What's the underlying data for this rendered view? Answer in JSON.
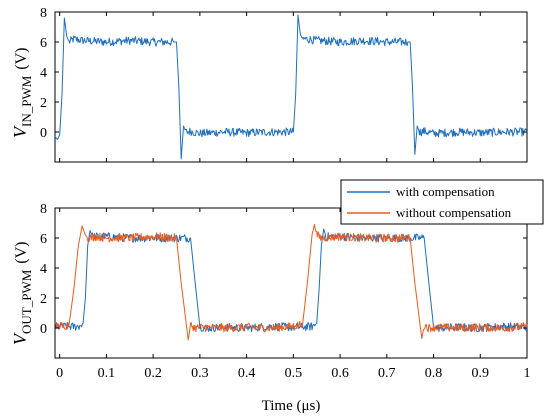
{
  "chart_data": [
    {
      "type": "line",
      "panel": "top",
      "ylabel": {
        "var": "V",
        "sub": "IN_PWM",
        "unit": "(V)"
      },
      "xlim": [
        -0.01,
        1.0
      ],
      "ylim": [
        -2,
        8
      ],
      "yticks": [
        "8",
        "6",
        "4",
        "2",
        "0"
      ],
      "yticks_values": [
        8,
        6,
        4,
        2,
        0
      ],
      "series": [
        {
          "name": "with compensation",
          "color": "#1f6fbf",
          "x": [
            -0.01,
            -0.005,
            0.0,
            0.005,
            0.01,
            0.015,
            0.02,
            0.03,
            0.05,
            0.1,
            0.15,
            0.2,
            0.245,
            0.25,
            0.255,
            0.26,
            0.265,
            0.27,
            0.28,
            0.3,
            0.35,
            0.4,
            0.45,
            0.5,
            0.505,
            0.51,
            0.515,
            0.52,
            0.53,
            0.55,
            0.6,
            0.65,
            0.7,
            0.745,
            0.75,
            0.755,
            0.76,
            0.765,
            0.77,
            0.78,
            0.8,
            0.85,
            0.9,
            0.95,
            1.0
          ],
          "y": [
            -0.3,
            -0.5,
            -0.2,
            2.5,
            7.6,
            6.4,
            6.0,
            6.2,
            6.1,
            6.0,
            6.1,
            6.0,
            6.0,
            6.0,
            3.0,
            -1.8,
            0.4,
            0.0,
            0.05,
            -0.1,
            0.0,
            -0.05,
            0.0,
            0.0,
            2.5,
            7.8,
            6.5,
            6.2,
            6.2,
            6.1,
            6.0,
            6.1,
            6.0,
            6.0,
            6.0,
            3.0,
            -1.5,
            0.4,
            0.0,
            0.05,
            -0.1,
            0.0,
            -0.05,
            0.0,
            0.0
          ]
        }
      ]
    },
    {
      "type": "line",
      "panel": "bottom",
      "ylabel": {
        "var": "V",
        "sub": "OUT_PWM",
        "unit": "(V)"
      },
      "xlabel": "Time (μs)",
      "xlim": [
        -0.01,
        1.0
      ],
      "xticks": [
        "0",
        "0.1",
        "0.2",
        "0.3",
        "0.4",
        "0.5",
        "0.6",
        "0.7",
        "0.8",
        "0.9",
        "1"
      ],
      "xticks_values": [
        0,
        0.1,
        0.2,
        0.3,
        0.4,
        0.5,
        0.6,
        0.7,
        0.8,
        0.9,
        1.0
      ],
      "ylim": [
        -2,
        8
      ],
      "yticks": [
        "8",
        "6",
        "4",
        "2",
        "0"
      ],
      "yticks_values": [
        8,
        6,
        4,
        2,
        0
      ],
      "legend": "top-right",
      "series": [
        {
          "name": "with compensation",
          "color": "#1f6fbf",
          "x": [
            -0.01,
            0.04,
            0.05,
            0.055,
            0.06,
            0.065,
            0.07,
            0.1,
            0.15,
            0.2,
            0.26,
            0.28,
            0.29,
            0.3,
            0.31,
            0.35,
            0.4,
            0.45,
            0.5,
            0.54,
            0.55,
            0.555,
            0.56,
            0.565,
            0.57,
            0.6,
            0.65,
            0.7,
            0.76,
            0.78,
            0.79,
            0.8,
            0.81,
            0.85,
            0.9,
            0.95,
            1.0
          ],
          "y": [
            0.1,
            0.1,
            0.3,
            2.0,
            5.5,
            6.5,
            6.1,
            6.1,
            6.0,
            6.0,
            6.0,
            6.0,
            3.0,
            0.1,
            0.0,
            0.05,
            0.0,
            0.1,
            0.05,
            0.1,
            0.3,
            2.5,
            5.5,
            6.6,
            6.1,
            6.1,
            6.0,
            6.0,
            6.0,
            6.0,
            3.0,
            0.1,
            0.0,
            0.05,
            0.0,
            0.1,
            0.05
          ]
        },
        {
          "name": "without compensation",
          "color": "#f05a1a",
          "x": [
            -0.01,
            0.02,
            0.03,
            0.04,
            0.048,
            0.055,
            0.06,
            0.08,
            0.1,
            0.15,
            0.2,
            0.25,
            0.26,
            0.27,
            0.275,
            0.28,
            0.29,
            0.3,
            0.35,
            0.4,
            0.45,
            0.5,
            0.52,
            0.53,
            0.54,
            0.545,
            0.55,
            0.56,
            0.6,
            0.65,
            0.7,
            0.75,
            0.76,
            0.77,
            0.775,
            0.78,
            0.79,
            0.8,
            0.85,
            0.9,
            0.95,
            1.0
          ],
          "y": [
            0.1,
            0.2,
            2.5,
            5.5,
            6.8,
            6.2,
            6.0,
            6.1,
            6.0,
            6.0,
            6.1,
            6.0,
            3.0,
            0.5,
            -0.8,
            0.2,
            0.0,
            0.05,
            0.0,
            0.05,
            0.0,
            0.1,
            0.3,
            3.0,
            6.2,
            6.9,
            6.2,
            6.0,
            6.1,
            6.0,
            6.0,
            6.0,
            3.0,
            0.5,
            -0.7,
            0.2,
            0.0,
            0.05,
            0.0,
            0.05,
            0.0,
            0.1
          ]
        }
      ]
    }
  ]
}
